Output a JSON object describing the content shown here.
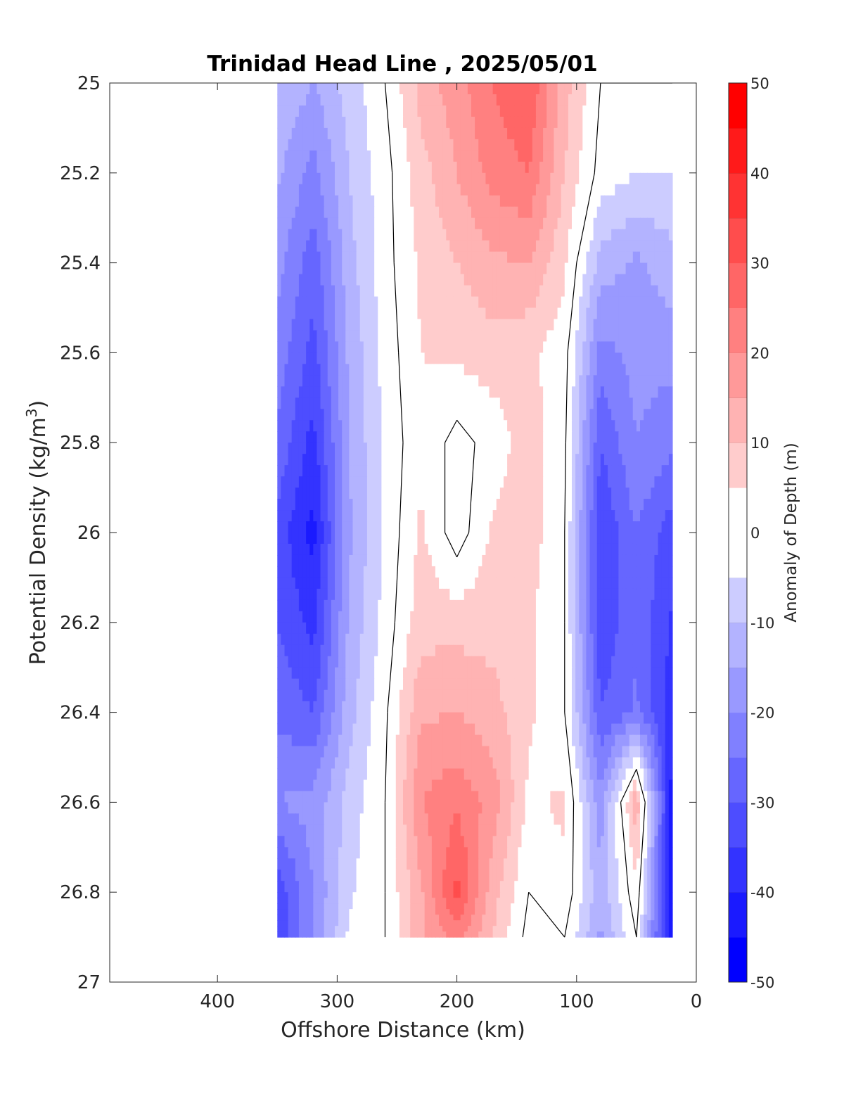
{
  "chart_data": {
    "type": "contourf",
    "title": "Trinidad Head Line , 2025/05/01",
    "xlabel": "Offshore Distance (km)",
    "ylabel": "Potential Density (kg/m³)",
    "ylabel_main": "Potential Density (kg/m",
    "ylabel_sup": "3",
    "ylabel_close": ")",
    "colorbar_label": "Anomaly of Depth (m)",
    "x_reversed": true,
    "y_reversed": true,
    "xlim": [
      0,
      490
    ],
    "ylim": [
      25,
      27
    ],
    "x_ticks": [
      0,
      100,
      200,
      300,
      400
    ],
    "x_tick_labels": [
      "0",
      "100",
      "200",
      "300",
      "400"
    ],
    "y_ticks": [
      25,
      25.2,
      25.4,
      25.6,
      25.8,
      26,
      26.2,
      26.4,
      26.6,
      26.8,
      27
    ],
    "y_tick_labels": [
      "25",
      "25.2",
      "25.4",
      "25.6",
      "25.8",
      "26",
      "26.2",
      "26.4",
      "26.6",
      "26.8",
      "27"
    ],
    "colorbar_ticks": [
      -50,
      -40,
      -30,
      -20,
      -10,
      0,
      10,
      20,
      30,
      40,
      50
    ],
    "colorbar_tick_labels": [
      "-50",
      "-40",
      "-30",
      "-20",
      "-10",
      "0",
      "10",
      "20",
      "30",
      "40",
      "50"
    ],
    "levels": [
      -50,
      -45,
      -40,
      -35,
      -30,
      -25,
      -20,
      -15,
      -10,
      -5,
      0,
      5,
      10,
      15,
      20,
      25,
      30,
      35,
      40,
      45,
      50
    ],
    "colormap": {
      "negative": "#0000ff",
      "zero": "#ffffff",
      "positive": "#ff0000"
    },
    "zero_contour_color": "#000000",
    "data_extent": {
      "x": [
        20,
        350
      ],
      "y": [
        25,
        26.9
      ]
    },
    "x": [
      350,
      320,
      290,
      260,
      230,
      200,
      170,
      140,
      110,
      80,
      50,
      20
    ],
    "y": [
      25.0,
      25.2,
      25.4,
      25.6,
      25.8,
      26.0,
      26.2,
      26.4,
      26.6,
      26.8,
      26.9
    ],
    "z": [
      [
        -10,
        -15,
        -8,
        0,
        12,
        18,
        25,
        30,
        12,
        0,
        0,
        0
      ],
      [
        -14,
        -22,
        -10,
        -2,
        8,
        15,
        22,
        25,
        10,
        -2,
        -5,
        -5
      ],
      [
        -18,
        -28,
        -12,
        -2,
        6,
        10,
        14,
        15,
        6,
        -12,
        -16,
        -12
      ],
      [
        -22,
        -32,
        -14,
        -3,
        5,
        6,
        8,
        6,
        2,
        -22,
        -18,
        -18
      ],
      [
        -26,
        -37,
        -15,
        -4,
        4,
        -2,
        2,
        8,
        1,
        -30,
        -20,
        -24
      ],
      [
        -32,
        -42,
        -16,
        -4,
        6,
        -3,
        6,
        8,
        0,
        -35,
        -25,
        -33
      ],
      [
        -30,
        -37,
        -14,
        -3,
        8,
        8,
        8,
        6,
        0,
        -34,
        -26,
        -36
      ],
      [
        -26,
        -30,
        -12,
        -1,
        14,
        15,
        12,
        6,
        0,
        -30,
        -24,
        -38
      ],
      [
        -20,
        -18,
        -8,
        0,
        20,
        24,
        18,
        4,
        6,
        -18,
        14,
        -44
      ],
      [
        -34,
        -20,
        -6,
        0,
        14,
        32,
        12,
        0,
        4,
        -14,
        4,
        -46
      ],
      [
        -34,
        -20,
        -4,
        0,
        14,
        22,
        10,
        -2,
        0,
        -16,
        0,
        -46
      ]
    ]
  }
}
